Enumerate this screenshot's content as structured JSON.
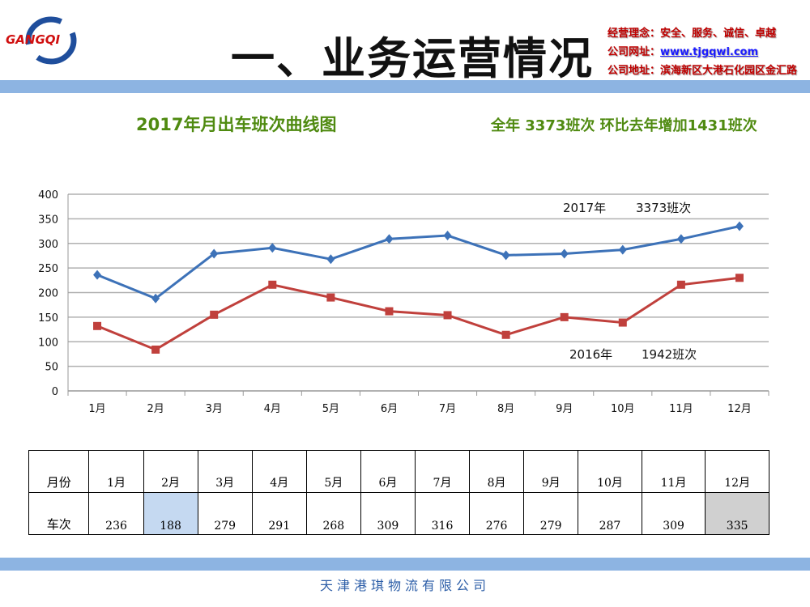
{
  "logo": {
    "text": "GANGQI"
  },
  "header": {
    "title": "一、业务运营情况",
    "info": [
      {
        "label": "经营理念：",
        "value": "安全、服务、诚信、卓越"
      },
      {
        "label": "公司网址：",
        "value": "www.tjgqwl.com"
      },
      {
        "label": "公司地址：",
        "value": "滨海新区大港石化园区金汇路"
      }
    ]
  },
  "colors": {
    "series2017": "#3d72b8",
    "series2016": "#c0403c",
    "accent_bar": "#8db4e2",
    "title_green": "#4f8a10"
  },
  "chart_data": {
    "type": "line",
    "title": "2017年月出车班次曲线图",
    "subtitle": "全年 3373班次 环比去年增加1431班次",
    "categories": [
      "1月",
      "2月",
      "3月",
      "4月",
      "5月",
      "6月",
      "7月",
      "8月",
      "9月",
      "10月",
      "11月",
      "12月"
    ],
    "ylim": [
      0,
      400
    ],
    "yticks": [
      0,
      50,
      100,
      150,
      200,
      250,
      300,
      350,
      400
    ],
    "grid": true,
    "series": [
      {
        "name": "2017",
        "label_year": "2017年",
        "label_total": "3373班次",
        "values": [
          236,
          188,
          279,
          291,
          268,
          309,
          316,
          276,
          279,
          287,
          309,
          335
        ]
      },
      {
        "name": "2016",
        "label_year": "2016年",
        "label_total": "1942班次",
        "values": [
          132,
          84,
          155,
          216,
          190,
          162,
          154,
          114,
          150,
          139,
          216,
          230
        ]
      }
    ]
  },
  "table": {
    "row1_header": "月份",
    "row2_header": "车次",
    "months": [
      "1月",
      "2月",
      "3月",
      "4月",
      "5月",
      "6月",
      "7月",
      "8月",
      "9月",
      "10月",
      "11月",
      "12月"
    ],
    "values": [
      "236",
      "188",
      "279",
      "291",
      "268",
      "309",
      "316",
      "276",
      "279",
      "287",
      "309",
      "335"
    ]
  },
  "footer": "天津港琪物流有限公司"
}
